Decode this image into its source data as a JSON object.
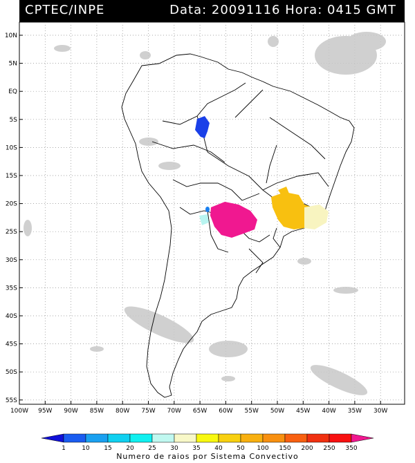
{
  "header": {
    "left": "CPTEC/INPE",
    "right": "Data: 20091116 Hora: 0415 GMT"
  },
  "map": {
    "lat_ticks": [
      "10N",
      "5N",
      "EQ",
      "5S",
      "10S",
      "15S",
      "20S",
      "25S",
      "30S",
      "35S",
      "40S",
      "45S",
      "50S",
      "55S"
    ],
    "lon_ticks": [
      "100W",
      "95W",
      "90W",
      "85W",
      "80W",
      "75W",
      "70W",
      "65W",
      "60W",
      "55W",
      "50W",
      "45W",
      "40W",
      "35W",
      "30W"
    ]
  },
  "colorbar": {
    "labels": [
      "1",
      "10",
      "15",
      "20",
      "25",
      "30",
      "35",
      "40",
      "50",
      "100",
      "150",
      "200",
      "250",
      "350"
    ],
    "colors": [
      "#1010d8",
      "#1a5cf0",
      "#1aa0f0",
      "#10d0f0",
      "#10f0f0",
      "#c0f8f0",
      "#f8f8c8",
      "#f8f810",
      "#f8d010",
      "#f8b010",
      "#f89010",
      "#f86010",
      "#f03010",
      "#f81010",
      "#f01890"
    ],
    "caption": "Numero de raios por Sistema Convectivo"
  }
}
